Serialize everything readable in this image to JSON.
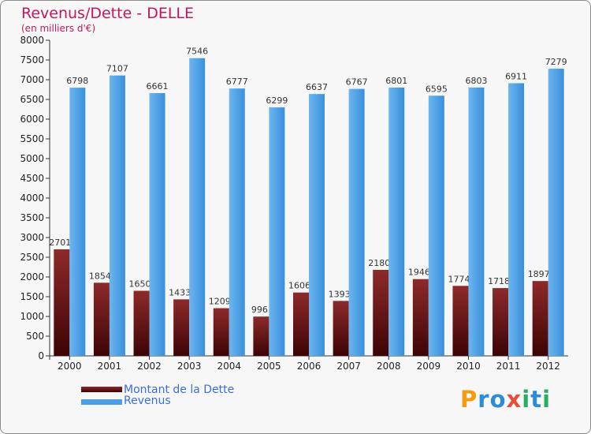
{
  "chart_data": {
    "type": "bar",
    "title": "Revenus/Dette - DELLE",
    "subtitle": "(en milliers d'€)",
    "categories": [
      "2000",
      "2001",
      "2002",
      "2003",
      "2004",
      "2005",
      "2006",
      "2007",
      "2008",
      "2009",
      "2010",
      "2011",
      "2012"
    ],
    "series": [
      {
        "name": "Montant de la Dette",
        "color": "#6d0f12",
        "labels": [
          "2701",
          "1854",
          "1650",
          "1433",
          "1209",
          "996",
          "1606",
          "1393",
          "2180",
          "1946",
          "1774",
          "1718",
          "1897"
        ],
        "values": [
          2701,
          1854,
          1650,
          1433,
          1209,
          996,
          1606,
          1393,
          2180,
          1946,
          1774,
          1718,
          1897
        ]
      },
      {
        "name": "Revenus",
        "color": "#4a9fe6",
        "labels": [
          "6798",
          "7107",
          "6661",
          "7546",
          "6777",
          "6299",
          "6637",
          "6767",
          "6801",
          "6595",
          "6803",
          "6911",
          "7279"
        ],
        "values": [
          6798,
          7107,
          6661,
          7546,
          6777,
          6299,
          6637,
          6767,
          6801,
          6595,
          6803,
          6911,
          7279
        ]
      }
    ],
    "yticks": [
      "0",
      "500",
      "1000",
      "1500",
      "2000",
      "2500",
      "3000",
      "3500",
      "4000",
      "4500",
      "5000",
      "5500",
      "6000",
      "6500",
      "7000",
      "7500",
      "8000"
    ],
    "ylim": [
      0,
      8000
    ],
    "grid": false,
    "legend_position": "bottom-left"
  },
  "logo": {
    "letters": [
      "P",
      "r",
      "o",
      "x",
      "i",
      "t",
      "i"
    ],
    "colors": [
      "#f39c12",
      "#2e8bd6",
      "#2e8bd6",
      "#e74c3c",
      "#27ae60",
      "#2e8bd6",
      "#27ae60"
    ]
  }
}
